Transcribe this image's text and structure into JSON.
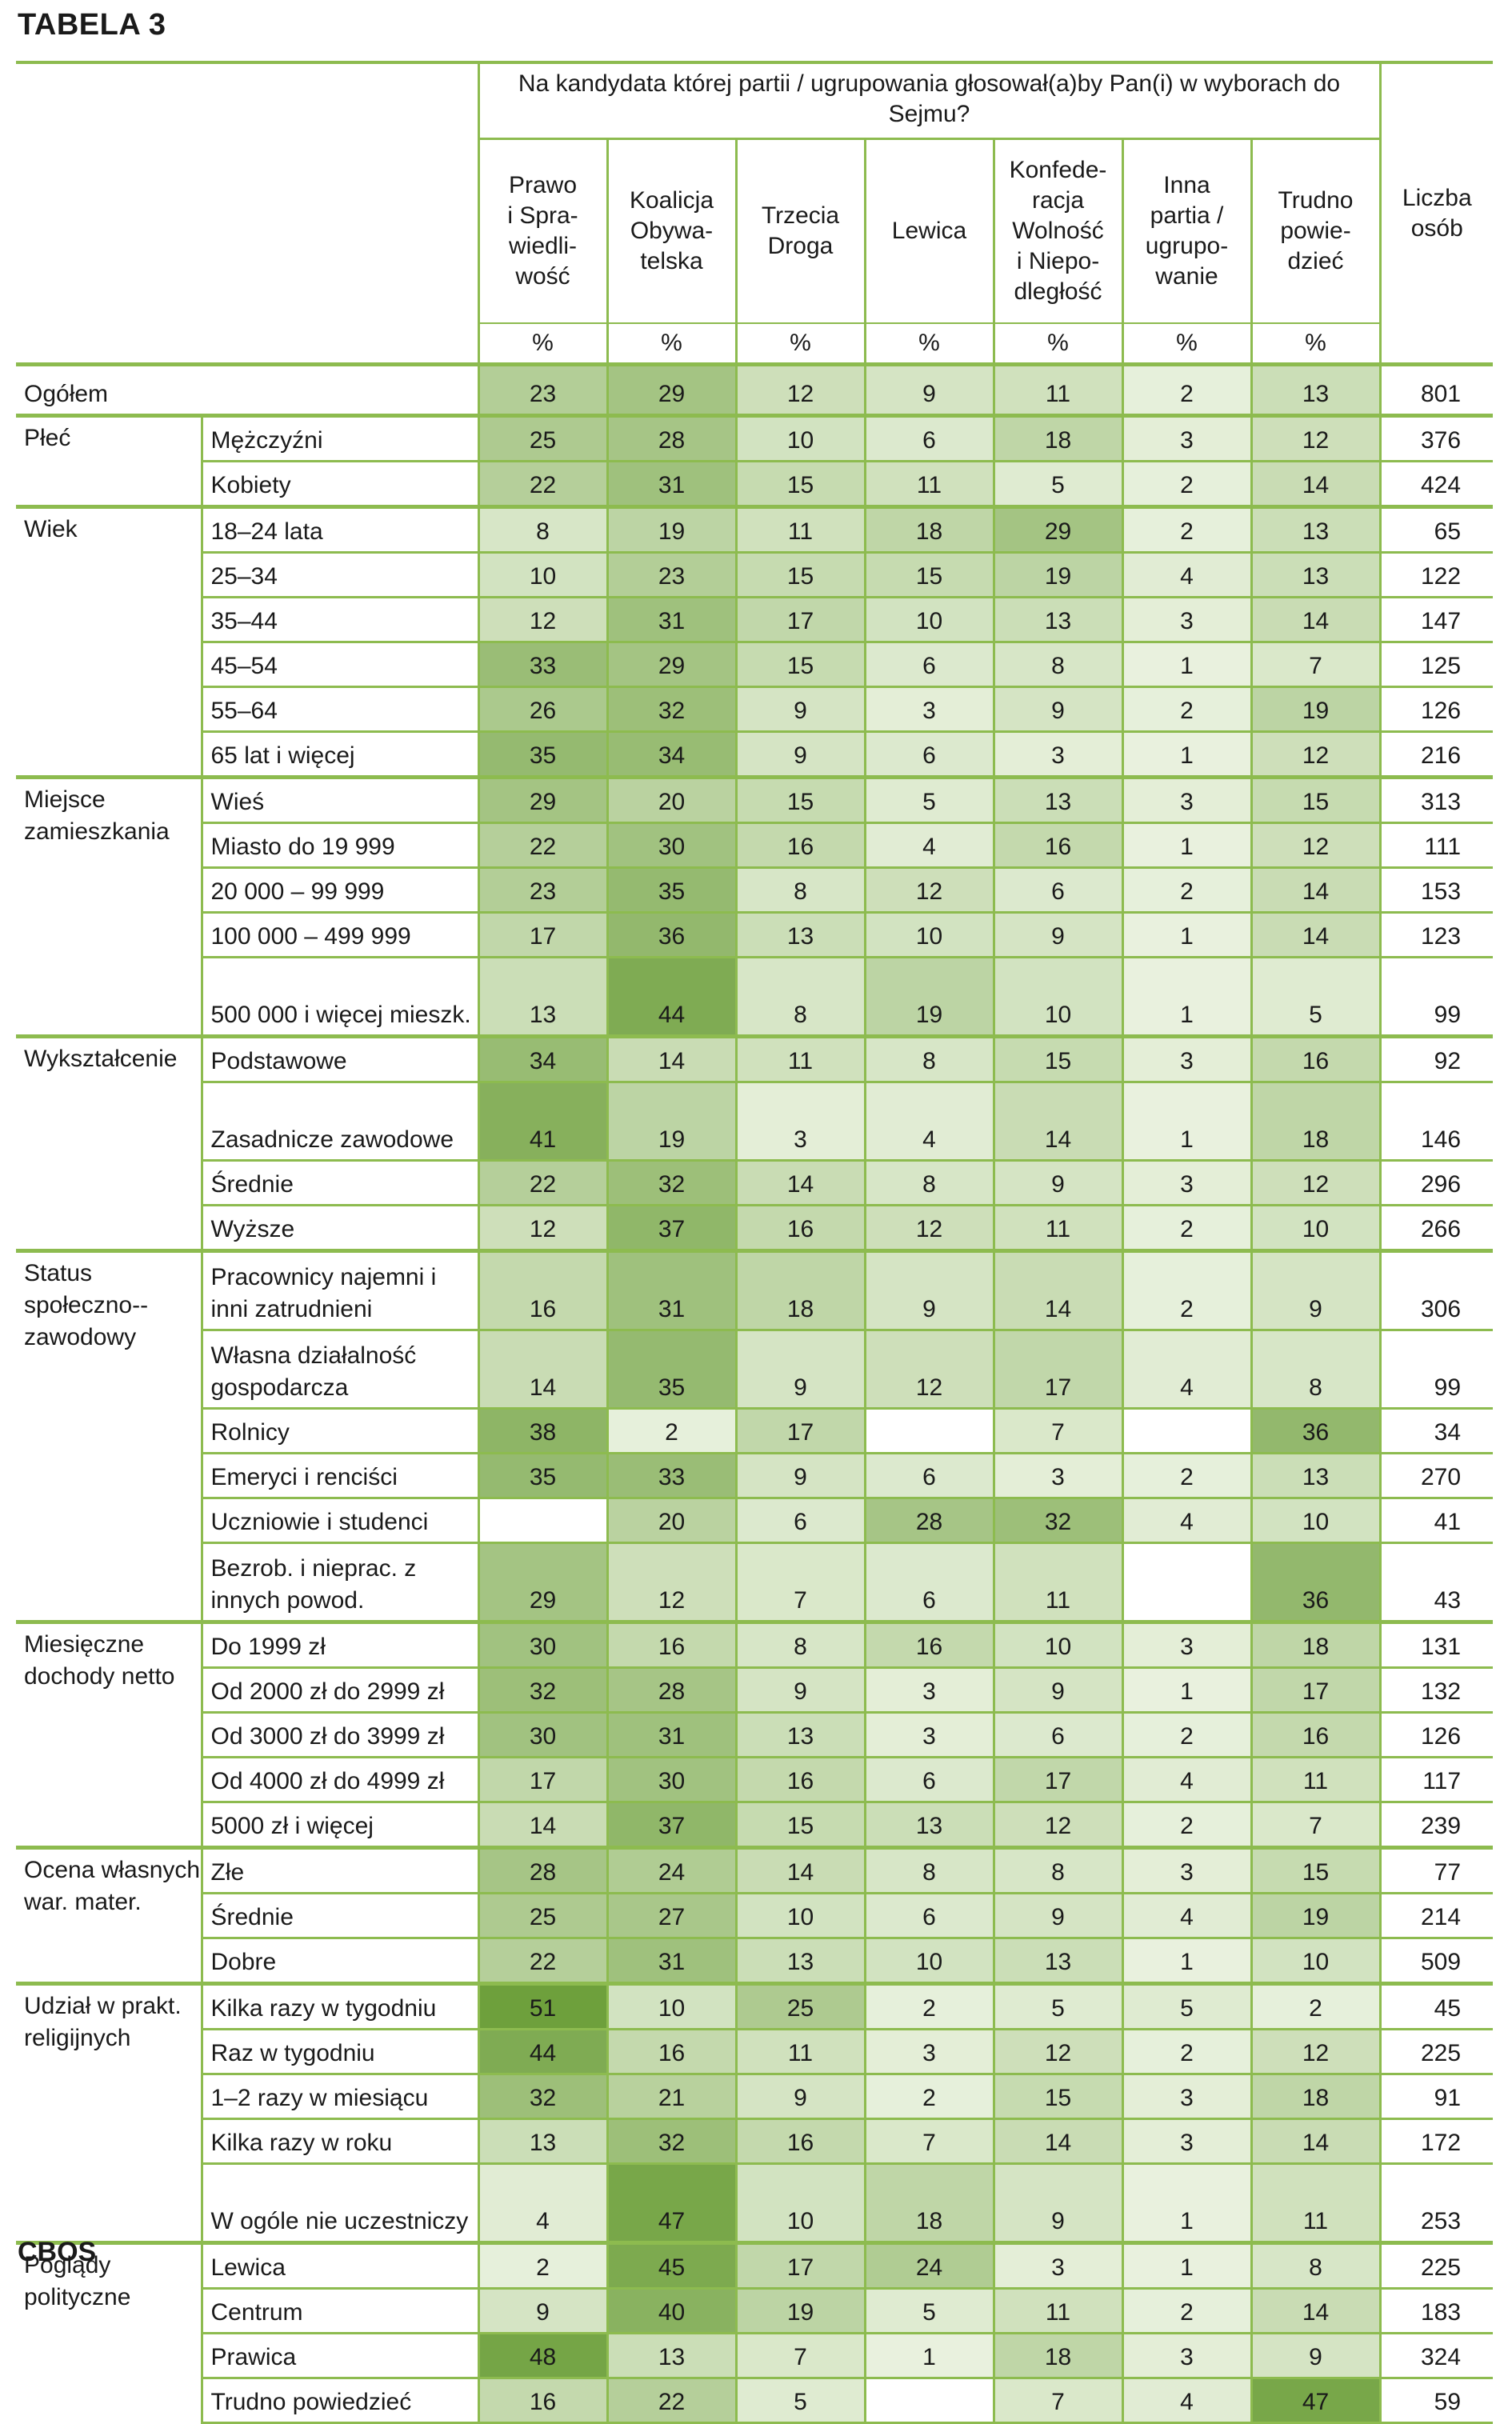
{
  "title": "TABELA 3",
  "footer": "CBOS",
  "question": "Na kandydata której partii / ugrupowania głosował(a)by Pan(i) w wyborach do Sejmu?",
  "columns": [
    "Prawo i Sprawiedliwość",
    "Koalicja Obywatelska",
    "Trzecia Droga",
    "Lewica",
    "Konfederacja Wolność i Niepodległość",
    "Inna partia / ugrupowanie",
    "Trudno powiedzieć"
  ],
  "column_lines": [
    [
      "Prawo",
      "i Spra-",
      "wiedli-",
      "wość"
    ],
    [
      "Koalicja",
      "Obywa-",
      "telska"
    ],
    [
      "Trzecia",
      "Droga"
    ],
    [
      "Lewica"
    ],
    [
      "Konfede-",
      "racja",
      "Wolność",
      "i Niepo-",
      "dległość"
    ],
    [
      "Inna",
      "partia /",
      "ugrupo-",
      "wanie"
    ],
    [
      "Trudno",
      "powie-",
      "dzieć"
    ]
  ],
  "count_header": [
    "Liczba",
    "osób"
  ],
  "unit": "%",
  "row_groups": [
    {
      "label": "Ogółem",
      "rows": [
        {
          "label": "",
          "values": [
            23,
            29,
            12,
            9,
            11,
            2,
            13
          ],
          "n": 801
        }
      ]
    },
    {
      "label": "Płeć",
      "rows": [
        {
          "label": "Mężczyźni",
          "values": [
            25,
            28,
            10,
            6,
            18,
            3,
            12
          ],
          "n": 376
        },
        {
          "label": "Kobiety",
          "values": [
            22,
            31,
            15,
            11,
            5,
            2,
            14
          ],
          "n": 424
        }
      ]
    },
    {
      "label": "Wiek",
      "rows": [
        {
          "label": "18–24 lata",
          "values": [
            8,
            19,
            11,
            18,
            29,
            2,
            13
          ],
          "n": 65
        },
        {
          "label": "25–34",
          "values": [
            10,
            23,
            15,
            15,
            19,
            4,
            13
          ],
          "n": 122
        },
        {
          "label": "35–44",
          "values": [
            12,
            31,
            17,
            10,
            13,
            3,
            14
          ],
          "n": 147
        },
        {
          "label": "45–54",
          "values": [
            33,
            29,
            15,
            6,
            8,
            1,
            7
          ],
          "n": 125
        },
        {
          "label": "55–64",
          "values": [
            26,
            32,
            9,
            3,
            9,
            2,
            19
          ],
          "n": 126
        },
        {
          "label": "65 lat i więcej",
          "values": [
            35,
            34,
            9,
            6,
            3,
            1,
            12
          ],
          "n": 216
        }
      ]
    },
    {
      "label": "Miejsce zamieszkania",
      "rows": [
        {
          "label": "Wieś",
          "values": [
            29,
            20,
            15,
            5,
            13,
            3,
            15
          ],
          "n": 313
        },
        {
          "label": "Miasto do 19 999",
          "values": [
            22,
            30,
            16,
            4,
            16,
            1,
            12
          ],
          "n": 111
        },
        {
          "label": "20 000 – 99 999",
          "values": [
            23,
            35,
            8,
            12,
            6,
            2,
            14
          ],
          "n": 153
        },
        {
          "label": "100 000 – 499 999",
          "values": [
            17,
            36,
            13,
            10,
            9,
            1,
            14
          ],
          "n": 123
        },
        {
          "label": "500 000 i więcej mieszk.",
          "values": [
            13,
            44,
            8,
            19,
            10,
            1,
            5
          ],
          "n": 99
        }
      ]
    },
    {
      "label": "Wykształcenie",
      "rows": [
        {
          "label": "Podstawowe",
          "values": [
            34,
            14,
            11,
            8,
            15,
            3,
            16
          ],
          "n": 92
        },
        {
          "label": "Zasadnicze zawodowe",
          "values": [
            41,
            19,
            3,
            4,
            14,
            1,
            18
          ],
          "n": 146
        },
        {
          "label": "Średnie",
          "values": [
            22,
            32,
            14,
            8,
            9,
            3,
            12
          ],
          "n": 296
        },
        {
          "label": "Wyższe",
          "values": [
            12,
            37,
            16,
            12,
            11,
            2,
            10
          ],
          "n": 266
        }
      ]
    },
    {
      "label": "Status społeczno--zawodowy",
      "rows": [
        {
          "label": "Pracownicy najemni i inni zatrudnieni",
          "values": [
            16,
            31,
            18,
            9,
            14,
            2,
            9
          ],
          "n": 306
        },
        {
          "label": "Własna działalność gospodarcza",
          "values": [
            14,
            35,
            9,
            12,
            17,
            4,
            8
          ],
          "n": 99
        },
        {
          "label": "Rolnicy",
          "values": [
            38,
            2,
            17,
            null,
            7,
            null,
            36
          ],
          "n": 34
        },
        {
          "label": "Emeryci i renciści",
          "values": [
            35,
            33,
            9,
            6,
            3,
            2,
            13
          ],
          "n": 270
        },
        {
          "label": "Uczniowie i studenci",
          "values": [
            null,
            20,
            6,
            28,
            32,
            4,
            10
          ],
          "n": 41
        },
        {
          "label": "Bezrob. i nieprac. z innych powod.",
          "values": [
            29,
            12,
            7,
            6,
            11,
            null,
            36
          ],
          "n": 43
        }
      ]
    },
    {
      "label": "Miesięczne dochody netto",
      "rows": [
        {
          "label": "Do 1999 zł",
          "values": [
            30,
            16,
            8,
            16,
            10,
            3,
            18
          ],
          "n": 131
        },
        {
          "label": "Od 2000 zł do 2999 zł",
          "values": [
            32,
            28,
            9,
            3,
            9,
            1,
            17
          ],
          "n": 132
        },
        {
          "label": "Od 3000 zł do 3999 zł",
          "values": [
            30,
            31,
            13,
            3,
            6,
            2,
            16
          ],
          "n": 126
        },
        {
          "label": "Od 4000 zł do 4999 zł",
          "values": [
            17,
            30,
            16,
            6,
            17,
            4,
            11
          ],
          "n": 117
        },
        {
          "label": "5000 zł i więcej",
          "values": [
            14,
            37,
            15,
            13,
            12,
            2,
            7
          ],
          "n": 239
        }
      ]
    },
    {
      "label": "Ocena własnych war. mater.",
      "rows": [
        {
          "label": "Złe",
          "values": [
            28,
            24,
            14,
            8,
            8,
            3,
            15
          ],
          "n": 77
        },
        {
          "label": "Średnie",
          "values": [
            25,
            27,
            10,
            6,
            9,
            4,
            19
          ],
          "n": 214
        },
        {
          "label": "Dobre",
          "values": [
            22,
            31,
            13,
            10,
            13,
            1,
            10
          ],
          "n": 509
        }
      ]
    },
    {
      "label": "Udział w prakt. religijnych",
      "rows": [
        {
          "label": "Kilka razy w tygodniu",
          "values": [
            51,
            10,
            25,
            2,
            5,
            5,
            2
          ],
          "n": 45
        },
        {
          "label": "Raz w tygodniu",
          "values": [
            44,
            16,
            11,
            3,
            12,
            2,
            12
          ],
          "n": 225
        },
        {
          "label": "1–2 razy w miesiącu",
          "values": [
            32,
            21,
            9,
            2,
            15,
            3,
            18
          ],
          "n": 91
        },
        {
          "label": "Kilka razy w roku",
          "values": [
            13,
            32,
            16,
            7,
            14,
            3,
            14
          ],
          "n": 172
        },
        {
          "label": "W ogóle nie uczestniczy",
          "values": [
            4,
            47,
            10,
            18,
            9,
            1,
            11
          ],
          "n": 253
        }
      ]
    },
    {
      "label": "Poglądy polityczne",
      "rows": [
        {
          "label": "Lewica",
          "values": [
            2,
            45,
            17,
            24,
            3,
            1,
            8
          ],
          "n": 225
        },
        {
          "label": "Centrum",
          "values": [
            9,
            40,
            19,
            5,
            11,
            2,
            14
          ],
          "n": 183
        },
        {
          "label": "Prawica",
          "values": [
            48,
            13,
            7,
            1,
            18,
            3,
            9
          ],
          "n": 324
        },
        {
          "label": "Trudno powiedzieć",
          "values": [
            16,
            22,
            5,
            null,
            7,
            4,
            47
          ],
          "n": 59
        }
      ]
    }
  ]
}
